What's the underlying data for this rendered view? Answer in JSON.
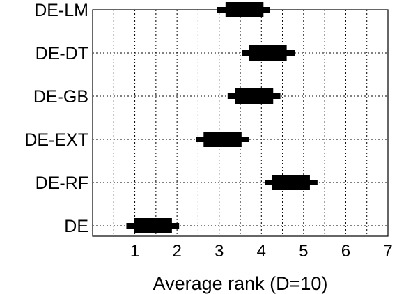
{
  "chart_data": {
    "type": "bar",
    "title": "",
    "xlabel": "Average rank (D=10)",
    "ylabel": "",
    "xlim": [
      0,
      7
    ],
    "xticks": [
      1,
      2,
      3,
      4,
      5,
      6,
      7
    ],
    "grid": true,
    "categories": [
      "DE-LM",
      "DE-DT",
      "DE-GB",
      "DE-EXT",
      "DE-RF",
      "DE"
    ],
    "intervals": [
      {
        "name": "DE-LM",
        "whisker_low": 2.95,
        "whisker_high": 4.2,
        "box_low": 3.15,
        "box_high": 4.05
      },
      {
        "name": "DE-DT",
        "whisker_low": 3.55,
        "whisker_high": 4.8,
        "box_low": 3.7,
        "box_high": 4.6
      },
      {
        "name": "DE-GB",
        "whisker_low": 3.2,
        "whisker_high": 4.45,
        "box_low": 3.38,
        "box_high": 4.28
      },
      {
        "name": "DE-EXT",
        "whisker_low": 2.45,
        "whisker_high": 3.7,
        "box_low": 2.63,
        "box_high": 3.53
      },
      {
        "name": "DE-RF",
        "whisker_low": 4.08,
        "whisker_high": 5.33,
        "box_low": 4.25,
        "box_high": 5.15
      },
      {
        "name": "DE",
        "whisker_low": 0.8,
        "whisker_high": 2.05,
        "box_low": 0.98,
        "box_high": 1.88
      }
    ],
    "colors": {
      "mark": "#000000",
      "grid": "#000000",
      "background": "#ffffff"
    }
  }
}
